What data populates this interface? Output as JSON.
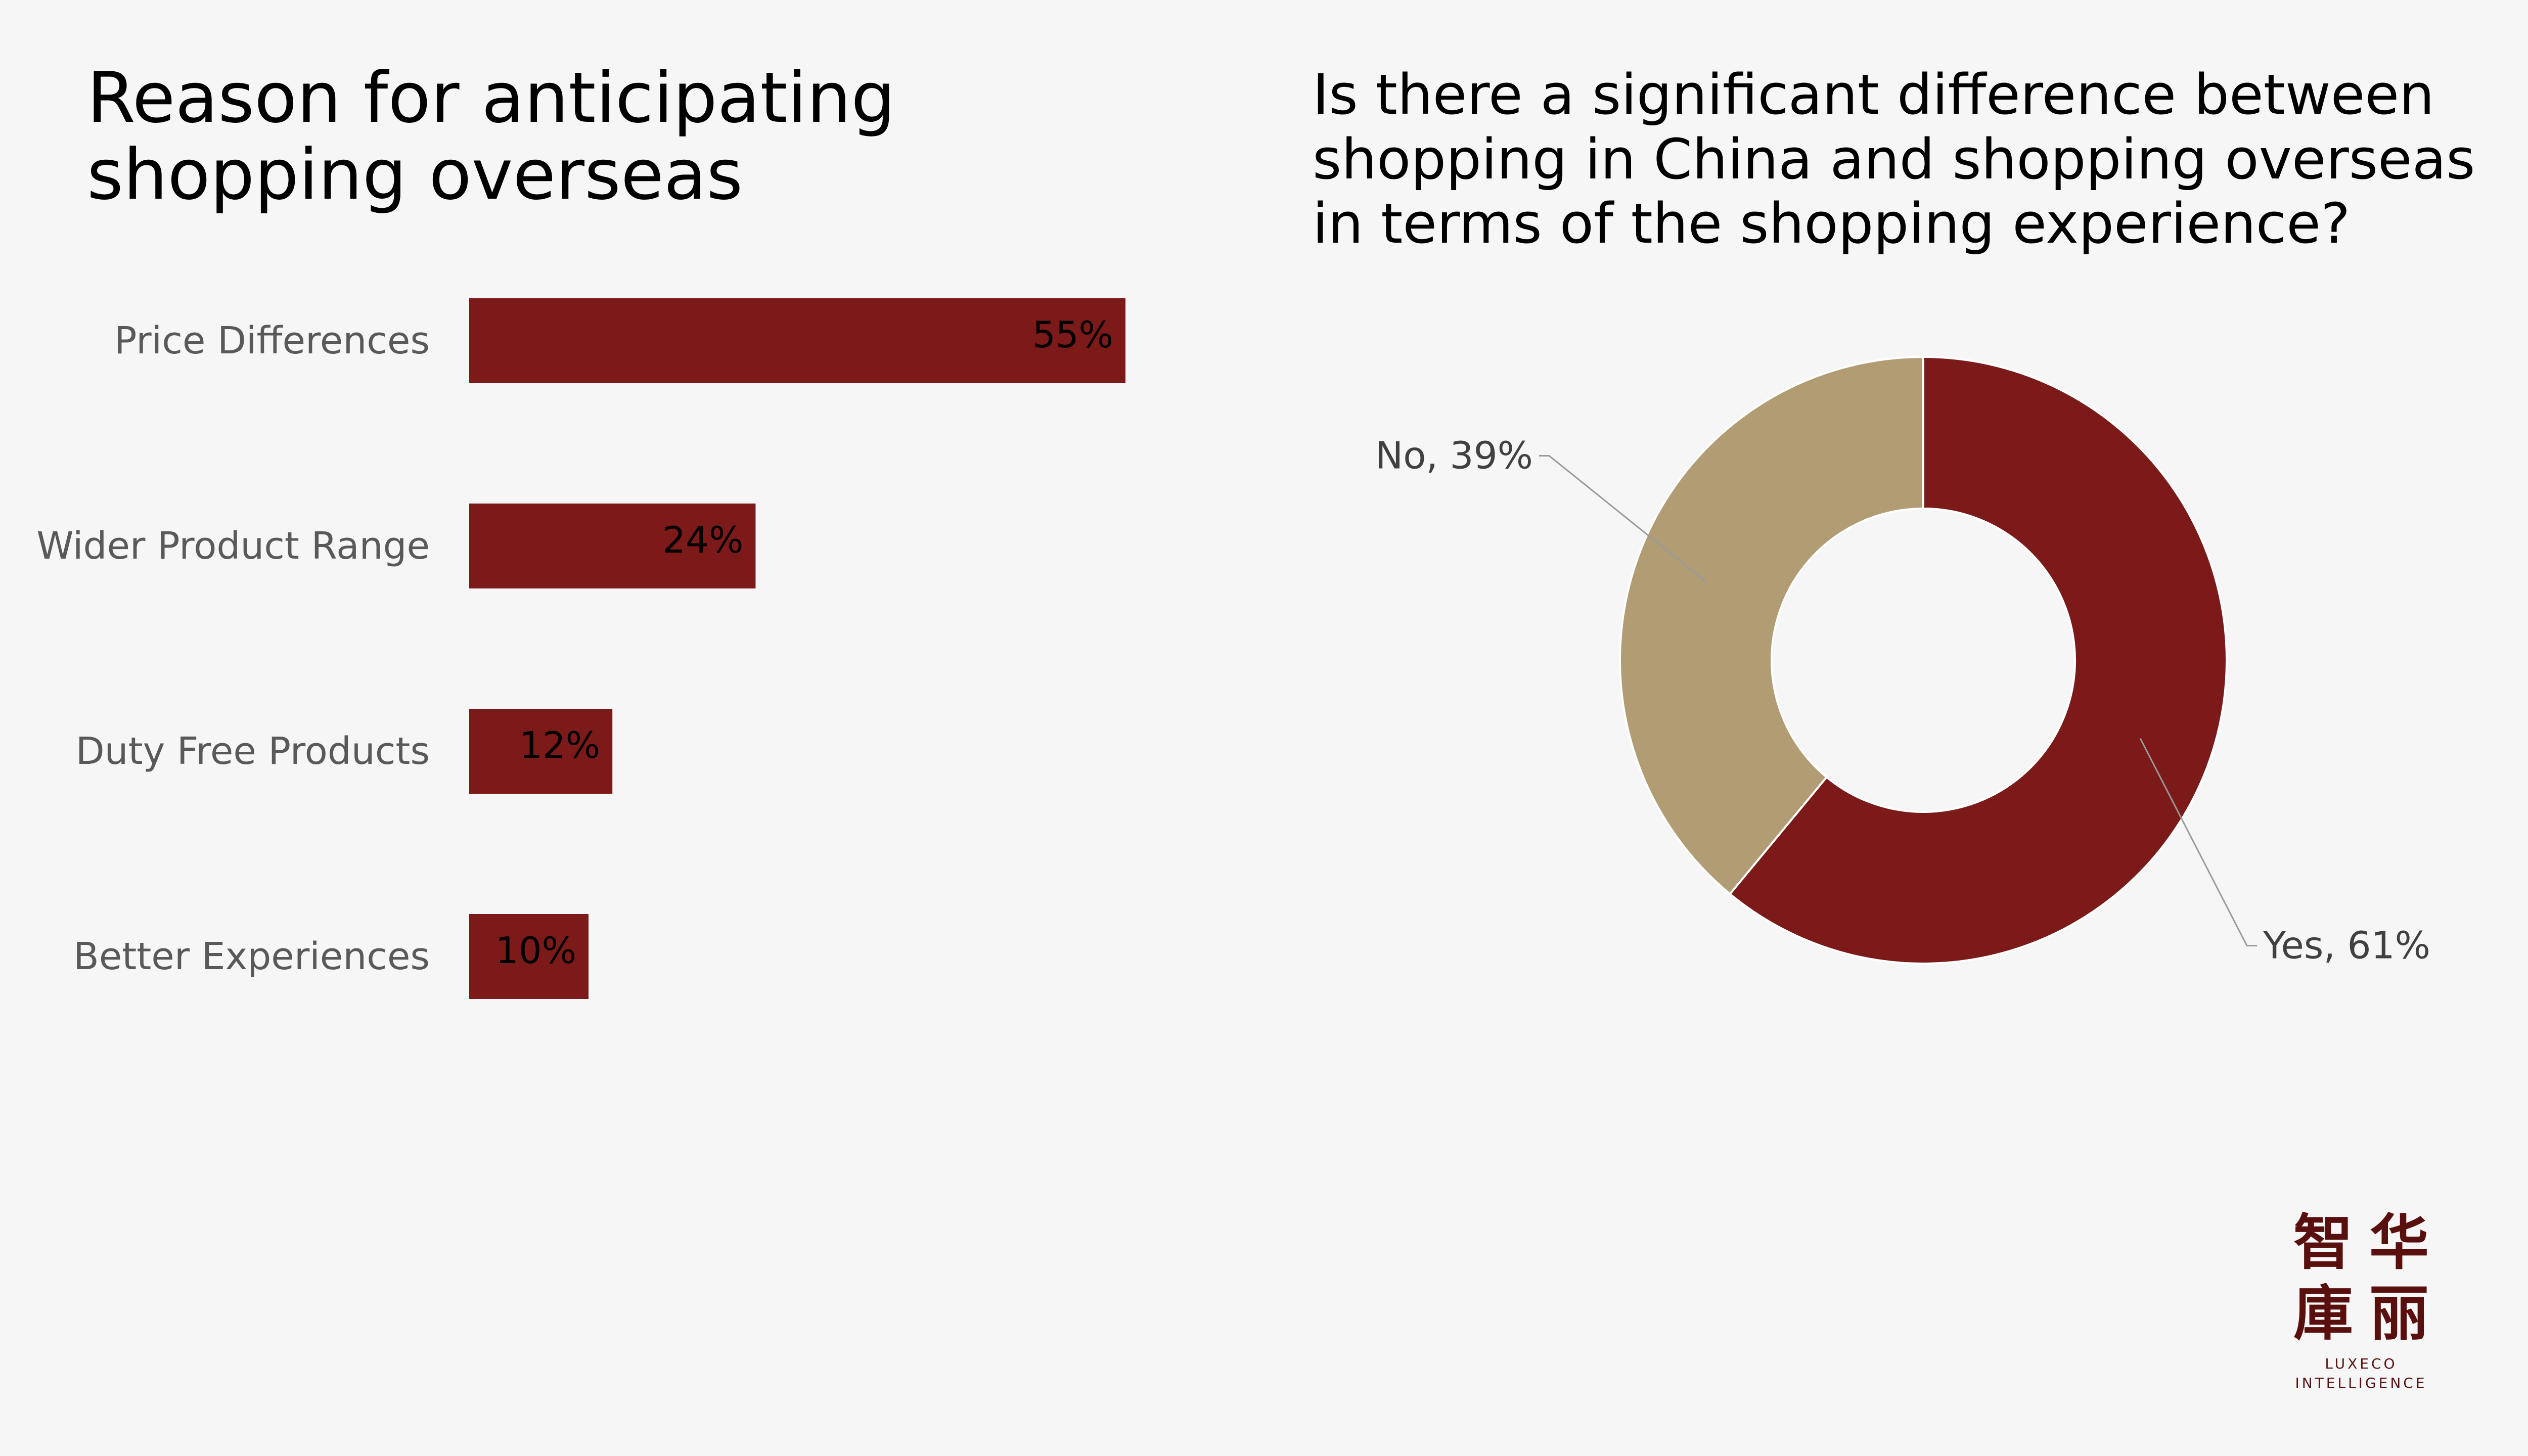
{
  "left_title": "Reason for anticipating shopping overseas",
  "right_title": "Is there a significant difference between shopping in China and shopping overseas in terms of the shopping experience?",
  "chart_data": [
    {
      "type": "bar",
      "orientation": "horizontal",
      "title": "Reason for anticipating shopping overseas",
      "categories": [
        "Price Differences",
        "Wider Product Range",
        "Duty Free Products",
        "Better Experiences"
      ],
      "values": [
        55,
        24,
        12,
        10
      ],
      "value_labels": [
        "55%",
        "24%",
        "12%",
        "10%"
      ],
      "unit": "%",
      "xlim": [
        0,
        100
      ],
      "grid": false,
      "legend": "none",
      "color": "#7b1a18"
    },
    {
      "type": "pie",
      "variant": "donut",
      "title": "Is there a significant difference between shopping in China and shopping overseas in terms of the shopping experience?",
      "slices": [
        {
          "label": "Yes",
          "value": 61,
          "display": "Yes, 61%",
          "color": "#7b1a18"
        },
        {
          "label": "No",
          "value": 39,
          "display": "No, 39%",
          "color": "#b19c74"
        }
      ],
      "legend": "none"
    }
  ],
  "logo": {
    "chars": [
      "智",
      "华",
      "庫",
      "丽"
    ],
    "line1": "LUXECO",
    "line2": "INTELLIGENCE"
  }
}
